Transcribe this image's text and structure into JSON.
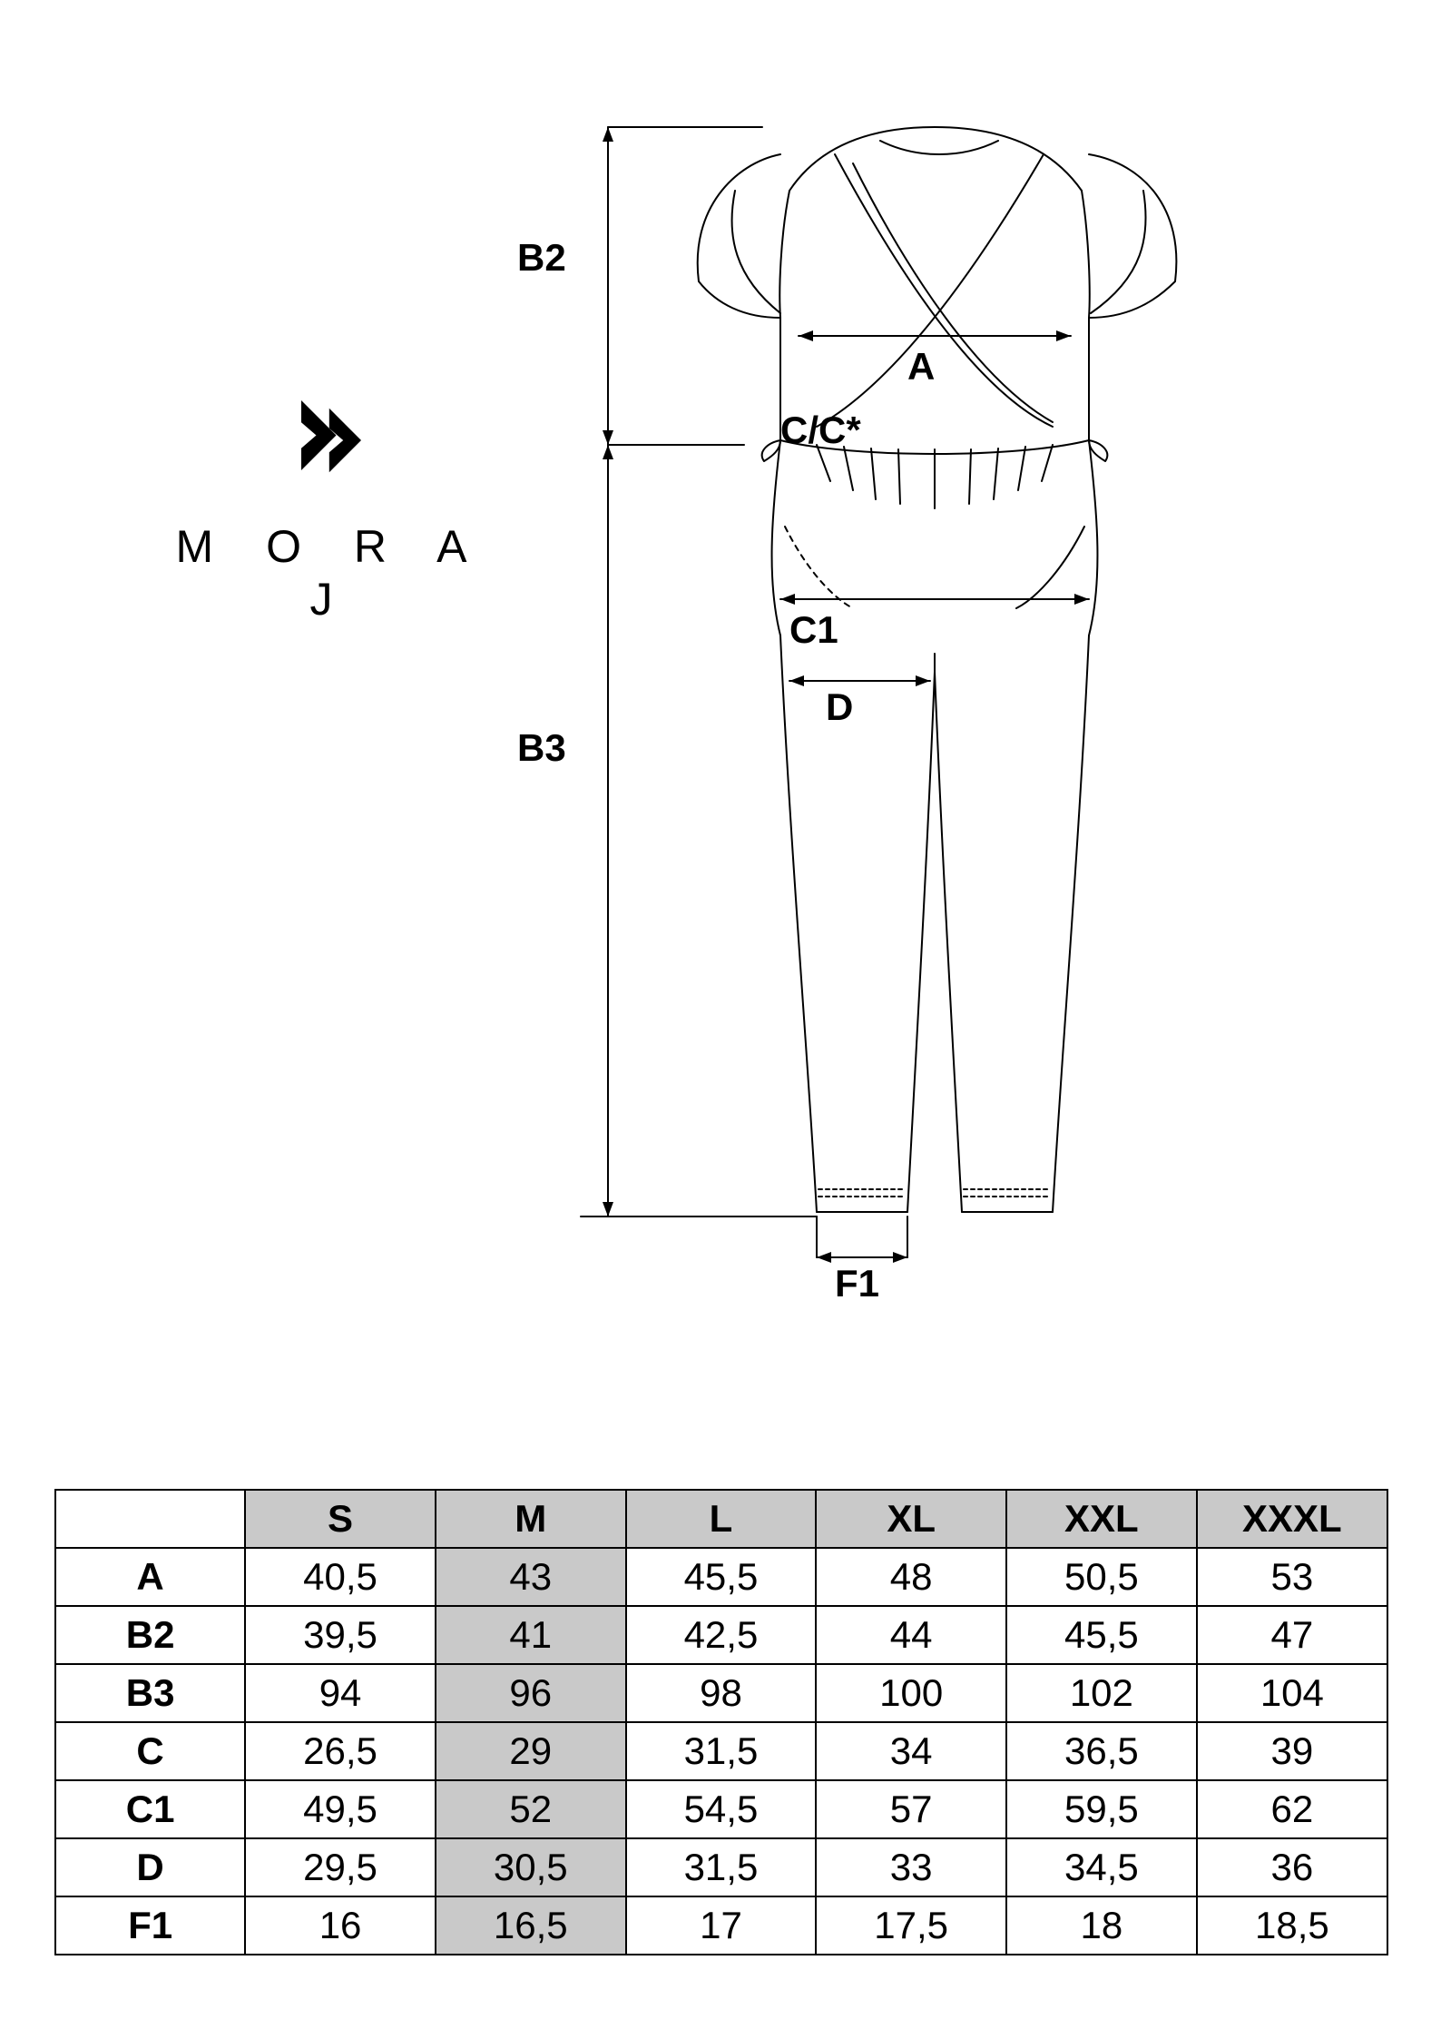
{
  "brand": {
    "name": "M O R A J"
  },
  "diagram": {
    "labels": {
      "B2": "B2",
      "B3": "B3",
      "A": "A",
      "CC": "C/C*",
      "C1": "C1",
      "D": "D",
      "F1": "F1"
    },
    "line_color": "#000000",
    "line_width": 2,
    "label_fontsize": 42,
    "label_fontweight": 700
  },
  "table": {
    "columns": [
      "S",
      "M",
      "L",
      "XL",
      "XXL",
      "XXXL"
    ],
    "highlight_column_index": 1,
    "row_labels": [
      "A",
      "B2",
      "B3",
      "C",
      "C1",
      "D",
      "F1"
    ],
    "rows": [
      [
        "40,5",
        "43",
        "45,5",
        "48",
        "50,5",
        "53"
      ],
      [
        "39,5",
        "41",
        "42,5",
        "44",
        "45,5",
        "47"
      ],
      [
        "94",
        "96",
        "98",
        "100",
        "102",
        "104"
      ],
      [
        "26,5",
        "29",
        "31,5",
        "34",
        "36,5",
        "39"
      ],
      [
        "49,5",
        "52",
        "54,5",
        "57",
        "59,5",
        "62"
      ],
      [
        "29,5",
        "30,5",
        "31,5",
        "33",
        "34,5",
        "36"
      ],
      [
        "16",
        "16,5",
        "17",
        "17,5",
        "18",
        "18,5"
      ]
    ],
    "header_bg": "#c9c9c9",
    "cell_bg": "#ffffff",
    "border_color": "#000000",
    "fontsize": 42
  }
}
